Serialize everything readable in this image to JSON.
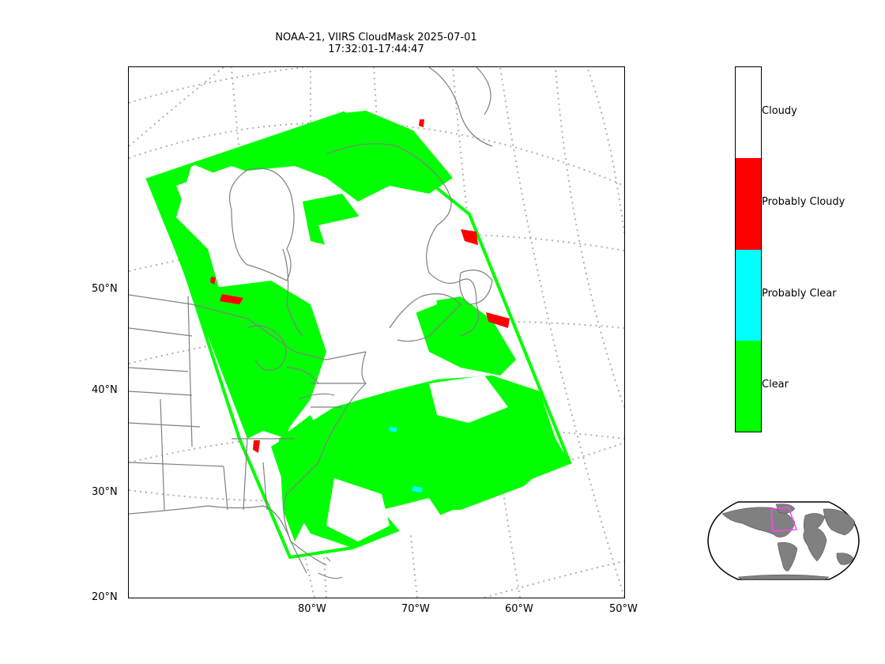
{
  "title": {
    "line1": "NOAA-21, VIIRS CloudMask 2025-07-01",
    "line2": "17:32:01-17:44:47"
  },
  "map": {
    "projection": "lambert-conformal",
    "gridlines": "dotted grey",
    "lat_labels": [
      "50°N",
      "40°N",
      "30°N",
      "20°N"
    ],
    "lon_labels": [
      "80°W",
      "70°W",
      "60°W",
      "50°W"
    ],
    "coastline_color": "#808080",
    "swath_classes_colors": {
      "Cloudy": "#ffffff",
      "Probably Cloudy": "#ff0000",
      "Probably Clear": "#00ffff",
      "Clear": "#00ff00"
    }
  },
  "colorbar": {
    "segments": [
      {
        "label": "Cloudy",
        "color": "#ffffff"
      },
      {
        "label": "Probably Cloudy",
        "color": "#ff0000"
      },
      {
        "label": "Probably Clear",
        "color": "#00ffff"
      },
      {
        "label": "Clear",
        "color": "#00ff00"
      }
    ]
  },
  "inset": {
    "type": "global locator map",
    "land_color": "#808080",
    "highlight_color": "#ff44ff"
  }
}
